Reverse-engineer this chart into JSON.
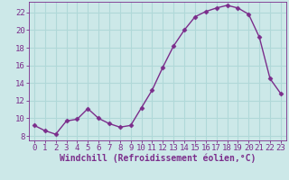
{
  "x": [
    0,
    1,
    2,
    3,
    4,
    5,
    6,
    7,
    8,
    9,
    10,
    11,
    12,
    13,
    14,
    15,
    16,
    17,
    18,
    19,
    20,
    21,
    22,
    23
  ],
  "y": [
    9.2,
    8.6,
    8.2,
    9.7,
    9.9,
    11.1,
    10.0,
    9.4,
    9.0,
    9.2,
    11.2,
    13.2,
    15.8,
    18.2,
    20.0,
    21.5,
    22.1,
    22.5,
    22.8,
    22.5,
    21.8,
    19.2,
    14.5,
    12.8
  ],
  "line_color": "#7B2D8B",
  "marker": "D",
  "markersize": 2.5,
  "linewidth": 1.0,
  "bg_color": "#cce8e8",
  "grid_color": "#b0d8d8",
  "xlabel": "Windchill (Refroidissement éolien,°C)",
  "xlabel_color": "#7B2D8B",
  "tick_color": "#7B2D8B",
  "xlim": [
    -0.5,
    23.5
  ],
  "ylim": [
    7.5,
    23.2
  ],
  "yticks": [
    8,
    10,
    12,
    14,
    16,
    18,
    20,
    22
  ],
  "xticks": [
    0,
    1,
    2,
    3,
    4,
    5,
    6,
    7,
    8,
    9,
    10,
    11,
    12,
    13,
    14,
    15,
    16,
    17,
    18,
    19,
    20,
    21,
    22,
    23
  ],
  "spine_color": "#7B2D8B",
  "font_size": 6.5,
  "xlabel_fontsize": 7.0
}
